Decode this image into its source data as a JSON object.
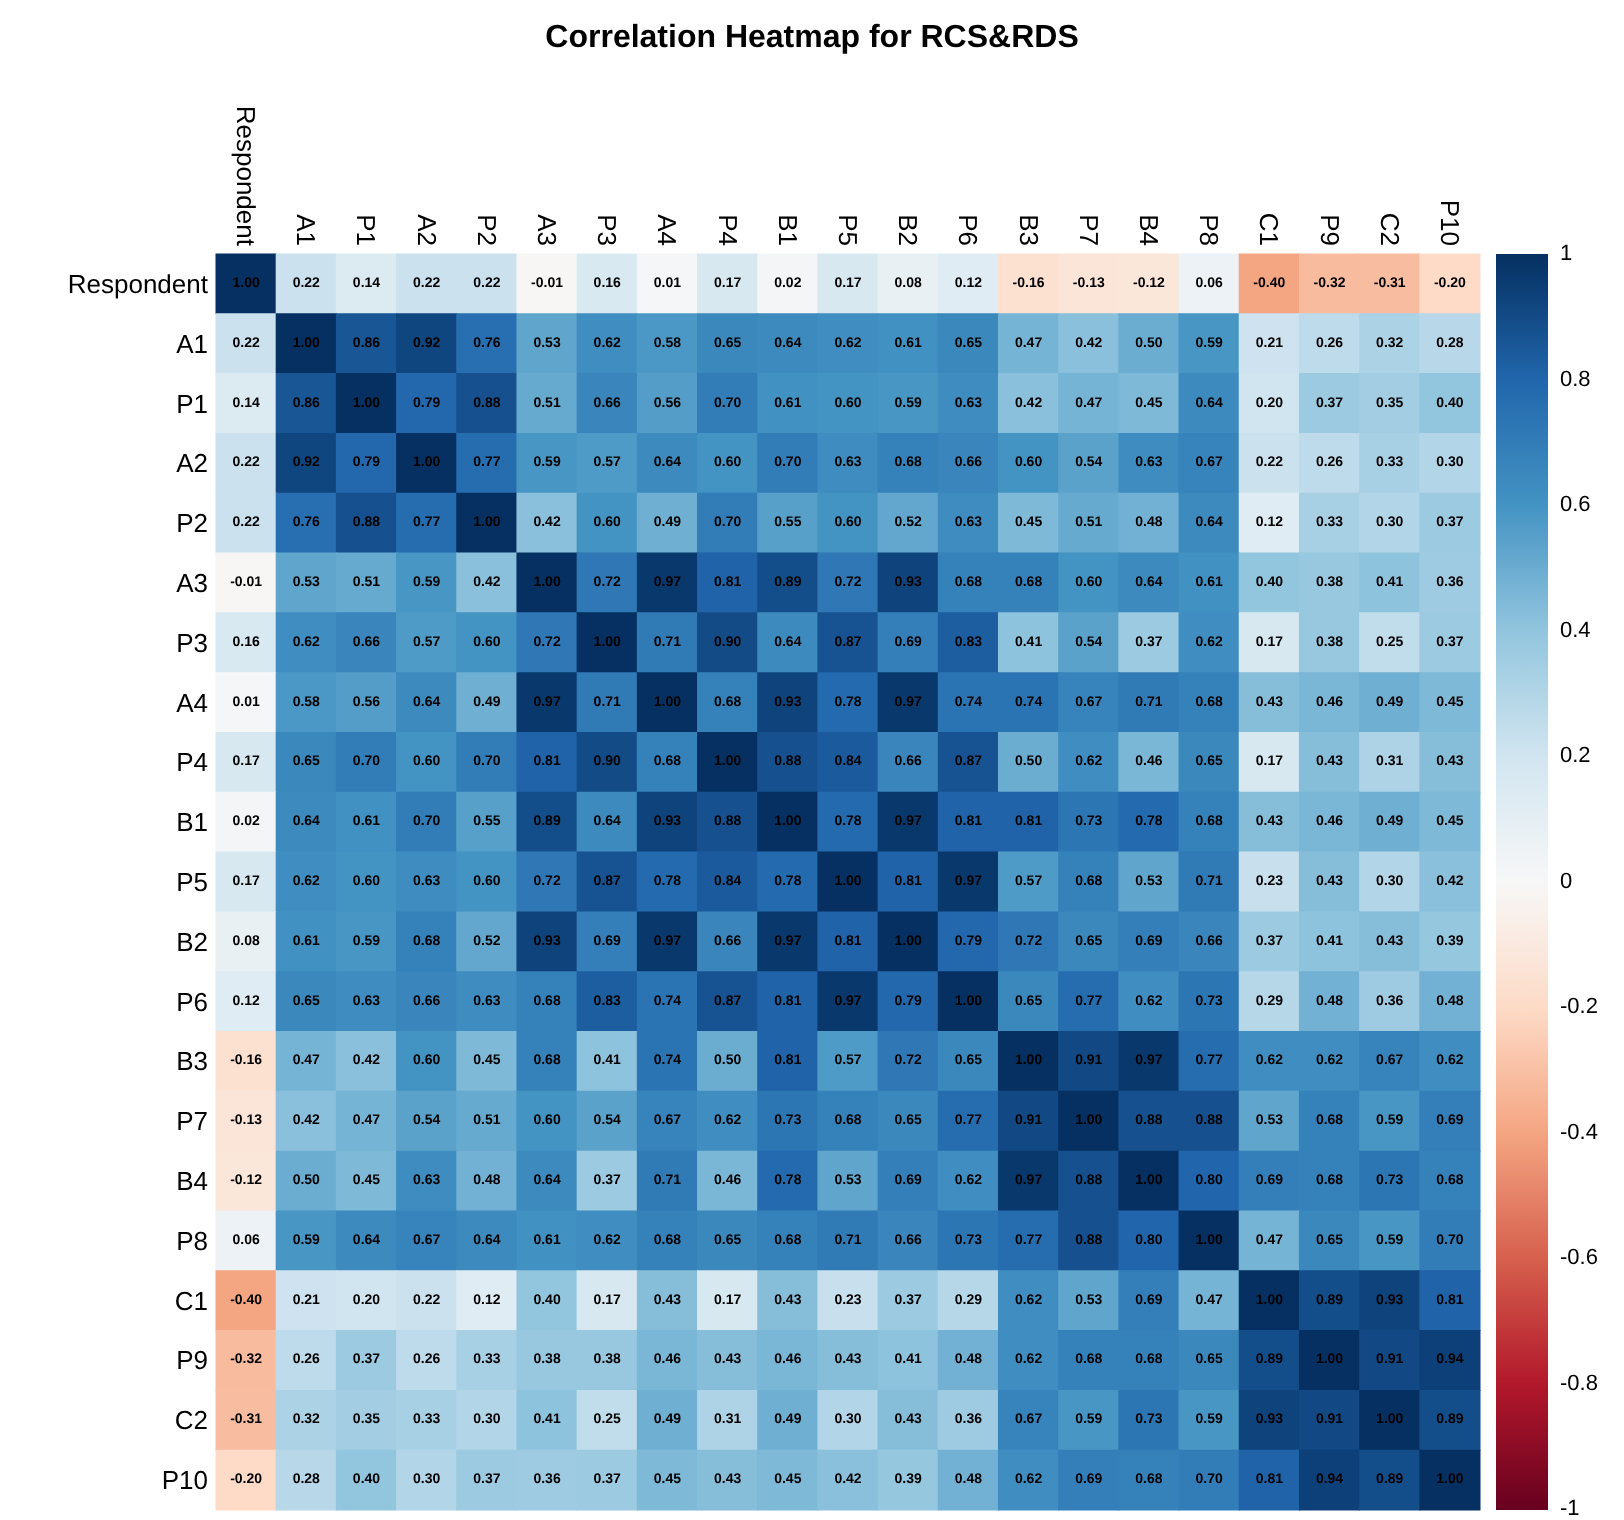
{
  "chart_data": {
    "type": "heatmap",
    "title": "Correlation Heatmap for RCS&RDS",
    "categories": [
      "Respondent",
      "A1",
      "P1",
      "A2",
      "P2",
      "A3",
      "P3",
      "A4",
      "P4",
      "B1",
      "P5",
      "B2",
      "P6",
      "B3",
      "P7",
      "B4",
      "P8",
      "C1",
      "P9",
      "C2",
      "P10"
    ],
    "y_categories": [
      "Respondent",
      "A1",
      "P1",
      "A2",
      "P2",
      "A3",
      "P3",
      "A4",
      "P4",
      "B1",
      "P5",
      "B2",
      "P6",
      "B3",
      "P7",
      "B4",
      "P8",
      "C1",
      "P9",
      "C2",
      "P10"
    ],
    "cells": [
      [
        1.0,
        0.22,
        0.14,
        0.22,
        0.22,
        -0.01,
        0.16,
        0.01,
        0.17,
        0.02,
        0.17,
        0.08,
        0.12,
        -0.16,
        -0.13,
        -0.12,
        0.06,
        -0.4,
        -0.32,
        -0.31,
        -0.2
      ],
      [
        0.22,
        1.0,
        0.86,
        0.92,
        0.76,
        0.53,
        0.62,
        0.58,
        0.65,
        0.64,
        0.62,
        0.61,
        0.65,
        0.47,
        0.42,
        0.5,
        0.59,
        0.21,
        0.26,
        0.32,
        0.28
      ],
      [
        0.14,
        0.86,
        1.0,
        0.79,
        0.88,
        0.51,
        0.66,
        0.56,
        0.7,
        0.61,
        0.6,
        0.59,
        0.63,
        0.42,
        0.47,
        0.45,
        0.64,
        0.2,
        0.37,
        0.35,
        0.4
      ],
      [
        0.22,
        0.92,
        0.79,
        1.0,
        0.77,
        0.59,
        0.57,
        0.64,
        0.6,
        0.7,
        0.63,
        0.68,
        0.66,
        0.6,
        0.54,
        0.63,
        0.67,
        0.22,
        0.26,
        0.33,
        0.3
      ],
      [
        0.22,
        0.76,
        0.88,
        0.77,
        1.0,
        0.42,
        0.6,
        0.49,
        0.7,
        0.55,
        0.6,
        0.52,
        0.63,
        0.45,
        0.51,
        0.48,
        0.64,
        0.12,
        0.33,
        0.3,
        0.37
      ],
      [
        -0.01,
        0.53,
        0.51,
        0.59,
        0.42,
        1.0,
        0.72,
        0.97,
        0.81,
        0.89,
        0.72,
        0.93,
        0.68,
        0.68,
        0.6,
        0.64,
        0.61,
        0.4,
        0.38,
        0.41,
        0.36
      ],
      [
        0.16,
        0.62,
        0.66,
        0.57,
        0.6,
        0.72,
        1.0,
        0.71,
        0.9,
        0.64,
        0.87,
        0.69,
        0.83,
        0.41,
        0.54,
        0.37,
        0.62,
        0.17,
        0.38,
        0.25,
        0.37
      ],
      [
        0.01,
        0.58,
        0.56,
        0.64,
        0.49,
        0.97,
        0.71,
        1.0,
        0.68,
        0.93,
        0.78,
        0.97,
        0.74,
        0.74,
        0.67,
        0.71,
        0.68,
        0.43,
        0.46,
        0.49,
        0.45
      ],
      [
        0.17,
        0.65,
        0.7,
        0.6,
        0.7,
        0.81,
        0.9,
        0.68,
        1.0,
        0.88,
        0.84,
        0.66,
        0.87,
        0.5,
        0.62,
        0.46,
        0.65,
        0.17,
        0.43,
        0.31,
        0.43
      ],
      [
        0.02,
        0.64,
        0.61,
        0.7,
        0.55,
        0.89,
        0.64,
        0.93,
        0.88,
        1.0,
        0.78,
        0.97,
        0.81,
        0.81,
        0.73,
        0.78,
        0.68,
        0.43,
        0.46,
        0.49,
        0.45
      ],
      [
        0.17,
        0.62,
        0.6,
        0.63,
        0.6,
        0.72,
        0.87,
        0.78,
        0.84,
        0.78,
        1.0,
        0.81,
        0.97,
        0.57,
        0.68,
        0.53,
        0.71,
        0.23,
        0.43,
        0.3,
        0.42
      ],
      [
        0.08,
        0.61,
        0.59,
        0.68,
        0.52,
        0.93,
        0.69,
        0.97,
        0.66,
        0.97,
        0.81,
        1.0,
        0.79,
        0.72,
        0.65,
        0.69,
        0.66,
        0.37,
        0.41,
        0.43,
        0.39
      ],
      [
        0.12,
        0.65,
        0.63,
        0.66,
        0.63,
        0.68,
        0.83,
        0.74,
        0.87,
        0.81,
        0.97,
        0.79,
        1.0,
        0.65,
        0.77,
        0.62,
        0.73,
        0.29,
        0.48,
        0.36,
        0.48
      ],
      [
        -0.16,
        0.47,
        0.42,
        0.6,
        0.45,
        0.68,
        0.41,
        0.74,
        0.5,
        0.81,
        0.57,
        0.72,
        0.65,
        1.0,
        0.91,
        0.97,
        0.77,
        0.62,
        0.62,
        0.67,
        0.62
      ],
      [
        -0.13,
        0.42,
        0.47,
        0.54,
        0.51,
        0.6,
        0.54,
        0.67,
        0.62,
        0.73,
        0.68,
        0.65,
        0.77,
        0.91,
        1.0,
        0.88,
        0.88,
        0.53,
        0.68,
        0.59,
        0.69
      ],
      [
        -0.12,
        0.5,
        0.45,
        0.63,
        0.48,
        0.64,
        0.37,
        0.71,
        0.46,
        0.78,
        0.53,
        0.69,
        0.62,
        0.97,
        0.88,
        1.0,
        0.8,
        0.69,
        0.68,
        0.73,
        0.68
      ],
      [
        0.06,
        0.59,
        0.64,
        0.67,
        0.64,
        0.61,
        0.62,
        0.68,
        0.65,
        0.68,
        0.71,
        0.66,
        0.73,
        0.77,
        0.88,
        0.8,
        1.0,
        0.47,
        0.65,
        0.59,
        0.7
      ],
      [
        -0.4,
        0.21,
        0.2,
        0.22,
        0.12,
        0.4,
        0.17,
        0.43,
        0.17,
        0.43,
        0.23,
        0.37,
        0.29,
        0.62,
        0.53,
        0.69,
        0.47,
        1.0,
        0.89,
        0.93,
        0.81
      ],
      [
        -0.32,
        0.26,
        0.37,
        0.26,
        0.33,
        0.38,
        0.38,
        0.46,
        0.43,
        0.46,
        0.43,
        0.41,
        0.48,
        0.62,
        0.68,
        0.68,
        0.65,
        0.89,
        1.0,
        0.91,
        0.94
      ],
      [
        -0.31,
        0.32,
        0.35,
        0.33,
        0.3,
        0.41,
        0.25,
        0.49,
        0.31,
        0.49,
        0.3,
        0.43,
        0.36,
        0.67,
        0.59,
        0.73,
        0.59,
        0.93,
        0.91,
        1.0,
        0.89
      ],
      [
        -0.2,
        0.28,
        0.4,
        0.3,
        0.37,
        0.36,
        0.37,
        0.45,
        0.43,
        0.45,
        0.42,
        0.39,
        0.48,
        0.62,
        0.69,
        0.68,
        0.7,
        0.81,
        0.94,
        0.89,
        1.0
      ]
    ],
    "cell_labels": [
      [
        "1.00",
        "0.22",
        "0.14",
        "0.22",
        "0.22",
        "-0.01",
        "0.16",
        "0.01",
        "0.17",
        "0.02",
        "0.17",
        "0.08",
        "0.12",
        "-0.16",
        "-0.13",
        "-0.12",
        "0.06",
        "-0.40",
        "-0.32",
        "-0.31",
        "-0.20"
      ],
      [
        "0.22",
        "1.00",
        "0.86",
        "0.92",
        "0.76",
        "0.53",
        "0.62",
        "0.58",
        "0.65",
        "0.64",
        "0.62",
        "0.61",
        "0.65",
        "0.47",
        "0.42",
        "0.50",
        "0.59",
        "0.21",
        "0.26",
        "0.32",
        "0.28"
      ],
      [
        "0.14",
        "0.86",
        "1.00",
        "0.79",
        "0.88",
        "0.51",
        "0.66",
        "0.56",
        "0.70",
        "0.61",
        "0.60",
        "0.59",
        "0.63",
        "0.42",
        "0.47",
        "0.45",
        "0.64",
        "0.20",
        "0.37",
        "0.35",
        "0.40"
      ],
      [
        "0.22",
        "0.92",
        "0.79",
        "1.00",
        "0.77",
        "0.59",
        "0.57",
        "0.64",
        "0.60",
        "0.70",
        "0.63",
        "0.68",
        "0.66",
        "0.60",
        "0.54",
        "0.63",
        "0.67",
        "0.22",
        "0.26",
        "0.33",
        "0.30"
      ],
      [
        "0.22",
        "0.76",
        "0.88",
        "0.77",
        "1.00",
        "0.42",
        "0.60",
        "0.49",
        "0.70",
        "0.55",
        "0.60",
        "0.52",
        "0.63",
        "0.45",
        "0.51",
        "0.48",
        "0.64",
        "0.12",
        "0.33",
        "0.30",
        "0.37"
      ],
      [
        "-0.01",
        "0.53",
        "0.51",
        "0.59",
        "0.42",
        "1.00",
        "0.72",
        "0.97",
        "0.81",
        "0.89",
        "0.72",
        "0.93",
        "0.68",
        "0.68",
        "0.60",
        "0.64",
        "0.61",
        "0.40",
        "0.38",
        "0.41",
        "0.36"
      ],
      [
        "0.16",
        "0.62",
        "0.66",
        "0.57",
        "0.60",
        "0.72",
        "1.00",
        "0.71",
        "0.90",
        "0.64",
        "0.87",
        "0.69",
        "0.83",
        "0.41",
        "0.54",
        "0.37",
        "0.62",
        "0.17",
        "0.38",
        "0.25",
        "0.37"
      ],
      [
        "0.01",
        "0.58",
        "0.56",
        "0.64",
        "0.49",
        "0.97",
        "0.71",
        "1.00",
        "0.68",
        "0.93",
        "0.78",
        "0.97",
        "0.74",
        "0.74",
        "0.67",
        "0.71",
        "0.68",
        "0.43",
        "0.46",
        "0.49",
        "0.45"
      ],
      [
        "0.17",
        "0.65",
        "0.70",
        "0.60",
        "0.70",
        "0.81",
        "0.90",
        "0.68",
        "1.00",
        "0.88",
        "0.84",
        "0.66",
        "0.87",
        "0.50",
        "0.62",
        "0.46",
        "0.65",
        "0.17",
        "0.43",
        "0.31",
        "0.43"
      ],
      [
        "0.02",
        "0.64",
        "0.61",
        "0.70",
        "0.55",
        "0.89",
        "0.64",
        "0.93",
        "0.88",
        "1.00",
        "0.78",
        "0.97",
        "0.81",
        "0.81",
        "0.73",
        "0.78",
        "0.68",
        "0.43",
        "0.46",
        "0.49",
        "0.45"
      ],
      [
        "0.17",
        "0.62",
        "0.60",
        "0.63",
        "0.60",
        "0.72",
        "0.87",
        "0.78",
        "0.84",
        "0.78",
        "1.00",
        "0.81",
        "0.97",
        "0.57",
        "0.68",
        "0.53",
        "0.71",
        "0.23",
        "0.43",
        "0.30",
        "0.42"
      ],
      [
        "0.08",
        "0.61",
        "0.59",
        "0.68",
        "0.52",
        "0.93",
        "0.69",
        "0.97",
        "0.66",
        "0.97",
        "0.81",
        "1.00",
        "0.79",
        "0.72",
        "0.65",
        "0.69",
        "0.66",
        "0.37",
        "0.41",
        "0.43",
        "0.39"
      ],
      [
        "0.12",
        "0.65",
        "0.63",
        "0.66",
        "0.63",
        "0.68",
        "0.83",
        "0.74",
        "0.87",
        "0.81",
        "0.97",
        "0.79",
        "1.00",
        "0.65",
        "0.77",
        "0.62",
        "0.73",
        "0.29",
        "0.48",
        "0.36",
        "0.48"
      ],
      [
        "-0.16",
        "0.47",
        "0.42",
        "0.60",
        "0.45",
        "0.68",
        "0.41",
        "0.74",
        "0.50",
        "0.81",
        "0.57",
        "0.72",
        "0.65",
        "1.00",
        "0.91",
        "0.97",
        "0.77",
        "0.62",
        "0.62",
        "0.67",
        "0.62"
      ],
      [
        "-0.13",
        "0.42",
        "0.47",
        "0.54",
        "0.51",
        "0.60",
        "0.54",
        "0.67",
        "0.62",
        "0.73",
        "0.68",
        "0.65",
        "0.77",
        "0.91",
        "1.00",
        "0.88",
        "0.88",
        "0.53",
        "0.68",
        "0.59",
        "0.69"
      ],
      [
        "-0.12",
        "0.50",
        "0.45",
        "0.63",
        "0.48",
        "0.64",
        "0.37",
        "0.71",
        "0.46",
        "0.78",
        "0.53",
        "0.69",
        "0.62",
        "0.97",
        "0.88",
        "1.00",
        "0.80",
        "0.69",
        "0.68",
        "0.73",
        "0.68"
      ],
      [
        "0.06",
        "0.59",
        "0.64",
        "0.67",
        "0.64",
        "0.61",
        "0.62",
        "0.68",
        "0.65",
        "0.68",
        "0.71",
        "0.66",
        "0.73",
        "0.77",
        "0.88",
        "0.80",
        "1.00",
        "0.47",
        "0.65",
        "0.59",
        "0.70"
      ],
      [
        "-0.40",
        "0.21",
        "0.20",
        "0.22",
        "0.12",
        "0.40",
        "0.17",
        "0.43",
        "0.17",
        "0.43",
        "0.23",
        "0.37",
        "0.29",
        "0.62",
        "0.53",
        "0.69",
        "0.47",
        "1.00",
        "0.89",
        "0.93",
        "0.81"
      ],
      [
        "-0.32",
        "0.26",
        "0.37",
        "0.26",
        "0.33",
        "0.38",
        "0.38",
        "0.46",
        "0.43",
        "0.46",
        "0.43",
        "0.41",
        "0.48",
        "0.62",
        "0.68",
        "0.68",
        "0.65",
        "0.89",
        "1.00",
        "0.91",
        "0.94"
      ],
      [
        "-0.31",
        "0.32",
        "0.35",
        "0.33",
        "0.30",
        "0.41",
        "0.25",
        "0.49",
        "0.31",
        "0.49",
        "0.30",
        "0.43",
        "0.36",
        "0.67",
        "0.59",
        "0.73",
        "0.59",
        "0.93",
        "0.91",
        "1.00",
        "0.89"
      ],
      [
        "-0.20",
        "0.28",
        "0.40",
        "0.30",
        "0.37",
        "0.36",
        "0.37",
        "0.45",
        "0.43",
        "0.45",
        "0.42",
        "0.39",
        "0.48",
        "0.62",
        "0.69",
        "0.68",
        "0.70",
        "0.81",
        "0.94",
        "0.89",
        "1.00"
      ]
    ],
    "clim": [
      -1,
      1
    ],
    "cticks": [
      1,
      0.8,
      0.6,
      0.4,
      0.2,
      0,
      -0.2,
      -0.4,
      -0.6,
      -0.8,
      -1
    ],
    "data_labels": true
  }
}
